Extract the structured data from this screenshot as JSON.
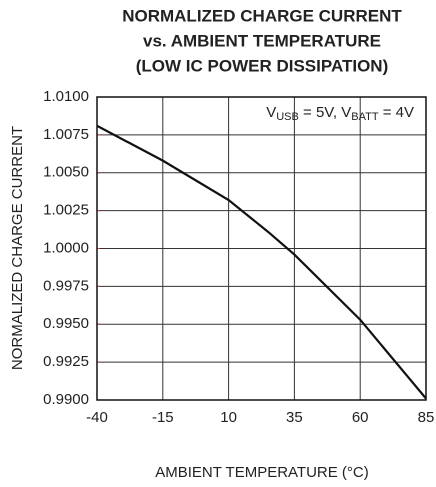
{
  "chart_data": {
    "type": "line",
    "title": [
      "NORMALIZED CHARGE CURRENT",
      "vs. AMBIENT TEMPERATURE",
      "(LOW IC POWER DISSIPATION)"
    ],
    "annotation": [
      "V",
      "USB",
      " = 5V, V",
      "BATT",
      " = 4V"
    ],
    "xlabel": "AMBIENT TEMPERATURE (°C)",
    "ylabel": "NORMALIZED CHARGE CURRENT",
    "x": [
      -40,
      -15,
      10,
      25,
      35,
      60,
      85
    ],
    "series": [
      {
        "color": "#111111",
        "values": [
          1.0081,
          1.0058,
          1.0032,
          1.0011,
          0.9996,
          0.9953,
          0.9901
        ]
      }
    ],
    "xlim": [
      -40,
      85
    ],
    "xticks": [
      -40,
      -15,
      10,
      35,
      60,
      85
    ],
    "ylim": [
      0.99,
      1.01
    ],
    "yticks": [
      {
        "value": 0.99,
        "label": "0.9900"
      },
      0.9925,
      {
        "value": 0.995,
        "label": "0.9950"
      },
      0.9975,
      {
        "value": 1,
        "label": "1.0000"
      },
      1.0025,
      {
        "value": 1.005,
        "label": "1.0050"
      },
      1.0075,
      {
        "value": 1.01,
        "label": "1.0100"
      }
    ],
    "grid": true
  }
}
